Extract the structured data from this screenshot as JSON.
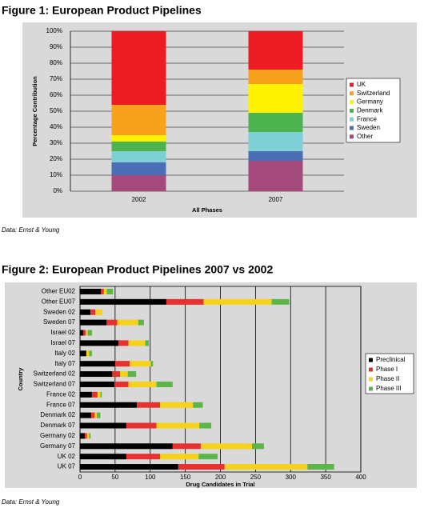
{
  "chart_data": [
    {
      "type": "bar",
      "stacked": true,
      "orientation": "vertical",
      "title": "Figure 1: European Product Pipelines",
      "x_label": "All Phases",
      "y_label": "Percentage Contribution",
      "source": "Data: Ernst & Young",
      "categories": [
        "2002",
        "2007"
      ],
      "series": [
        {
          "name": "Other",
          "color": "#a54a7b",
          "values": [
            10,
            19
          ]
        },
        {
          "name": "Sweden",
          "color": "#4a6fb5",
          "values": [
            8,
            6
          ]
        },
        {
          "name": "France",
          "color": "#7fd0d4",
          "values": [
            7,
            12
          ]
        },
        {
          "name": "Denmark",
          "color": "#4cb34e",
          "values": [
            6,
            12
          ]
        },
        {
          "name": "Germany",
          "color": "#fff200",
          "values": [
            4,
            18
          ]
        },
        {
          "name": "Switzerland",
          "color": "#f7a21b",
          "values": [
            19,
            9
          ]
        },
        {
          "name": "UK",
          "color": "#ed1c24",
          "values": [
            46,
            24
          ]
        }
      ],
      "ylim": [
        0,
        100
      ],
      "yticks": [
        {
          "value": 0,
          "label": "0%"
        },
        {
          "value": 10,
          "label": "10%"
        },
        {
          "value": 20,
          "label": "20%"
        },
        {
          "value": 30,
          "label": "30%"
        },
        {
          "value": 40,
          "label": "40%"
        },
        {
          "value": 50,
          "label": "50%"
        },
        {
          "value": 60,
          "label": "60%"
        },
        {
          "value": 70,
          "label": "70%"
        },
        {
          "value": 80,
          "label": "80%"
        },
        {
          "value": 90,
          "label": "90%"
        },
        {
          "value": 100,
          "label": "100%"
        }
      ],
      "grid": true,
      "legend": "right",
      "background": "#d9d9d9"
    },
    {
      "type": "bar",
      "stacked": true,
      "orientation": "horizontal",
      "title": "Figure 2: European Product Pipelines 2007 vs 2002",
      "x_label": "Drug Candidates in Trial",
      "y_label": "Country",
      "source": "Data: Ernst & Young",
      "categories": [
        "Other EU02",
        "Other EU07",
        "Sweden 02",
        "Sweden 07",
        "Israel 02",
        "Israel 07",
        "Italy 02",
        "Italy 07",
        "Switzerland 02",
        "Switzerland 07",
        "France 02",
        "France 07",
        "Denmark 02",
        "Denmark 07",
        "Germany 02",
        "Germany 07",
        "UK 02",
        "UK 07"
      ],
      "series": [
        {
          "name": "Preclinical",
          "color": "#000000",
          "values": [
            30,
            123,
            15,
            38,
            5,
            55,
            9,
            50,
            46,
            49,
            17,
            81,
            16,
            66,
            7,
            132,
            66,
            140
          ]
        },
        {
          "name": "Phase I",
          "color": "#e8312f",
          "values": [
            4,
            53,
            7,
            15,
            3,
            14,
            0,
            21,
            11,
            20,
            8,
            33,
            5,
            43,
            3,
            40,
            48,
            66
          ]
        },
        {
          "name": "Phase II",
          "color": "#f7d21a",
          "values": [
            4,
            97,
            10,
            30,
            3,
            24,
            4,
            30,
            11,
            40,
            4,
            47,
            3,
            61,
            3,
            73,
            55,
            118
          ]
        },
        {
          "name": "Phase III",
          "color": "#5cb548",
          "values": [
            9,
            25,
            0,
            8,
            6,
            5,
            4,
            3,
            12,
            23,
            2,
            14,
            5,
            17,
            2,
            17,
            27,
            38
          ]
        }
      ],
      "xlim": [
        0,
        400
      ],
      "xticks": [
        0,
        50,
        100,
        150,
        200,
        250,
        300,
        350,
        400
      ],
      "grid": true,
      "legend": "right",
      "background": "#d9d9d9"
    }
  ]
}
